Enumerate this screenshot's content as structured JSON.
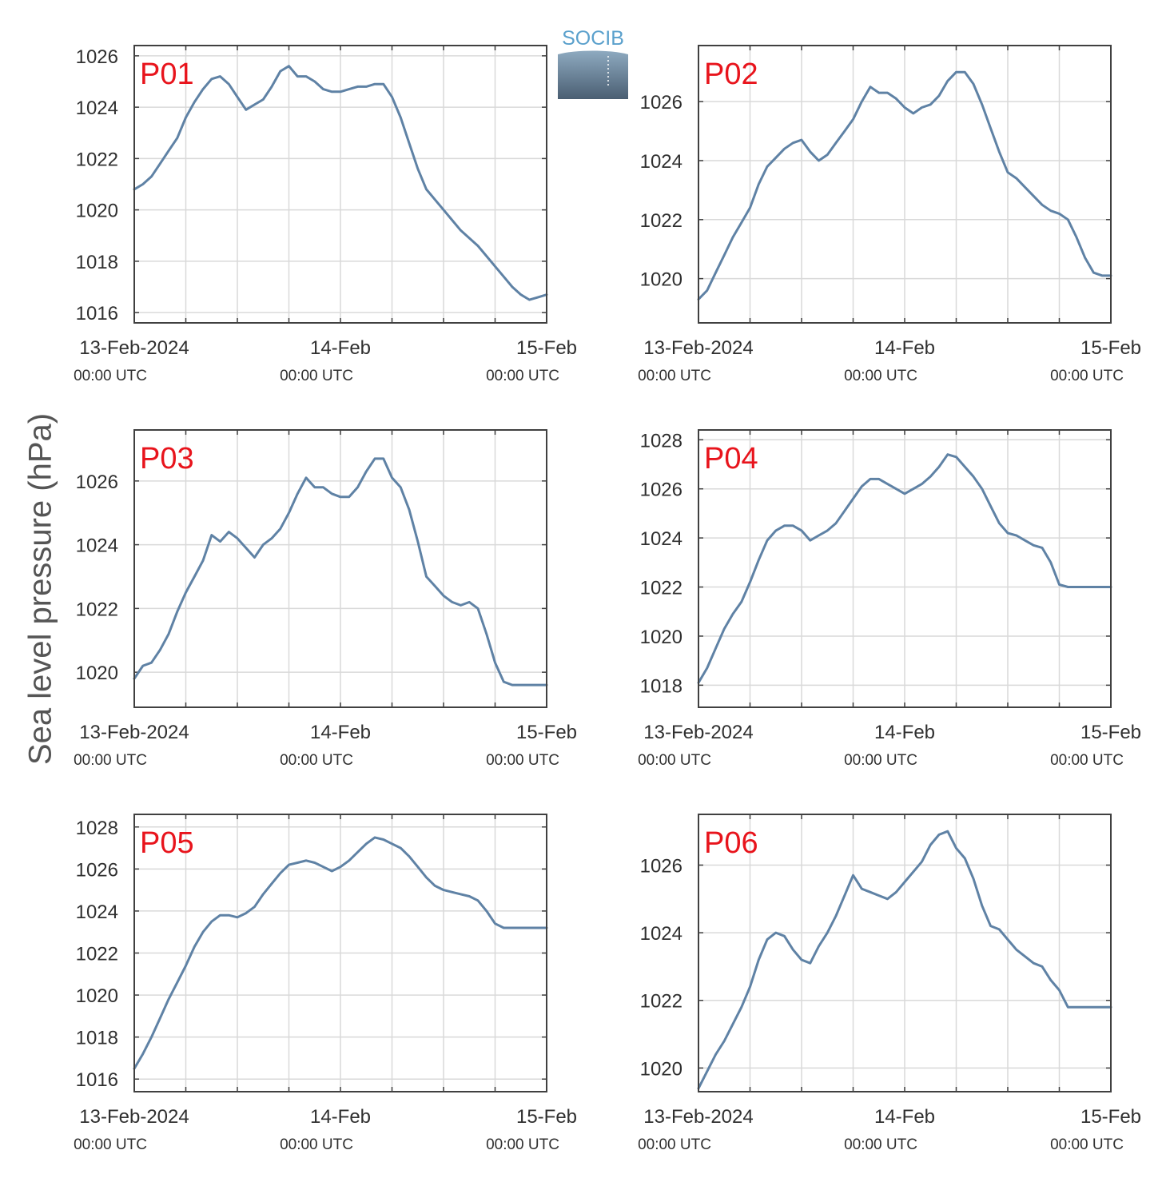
{
  "figure": {
    "ylabel": "Sea level pressure (hPa)",
    "logo_text": "SOCIB",
    "line_color": "#5f82a5",
    "label_color": "#e8141c",
    "grid_color": "#d9d9d9",
    "axis_color": "#404040"
  },
  "chart_data": [
    {
      "type": "line",
      "title": "P01",
      "grid": true,
      "xlim": [
        0,
        48
      ],
      "ylim": [
        1015.6,
        1026.4
      ],
      "xticks": [
        0,
        24,
        48
      ],
      "xtick_labels": [
        [
          "13-Feb-2024",
          "00:00 UTC"
        ],
        [
          "14-Feb",
          "00:00 UTC"
        ],
        [
          "15-Feb",
          "00:00 UTC"
        ]
      ],
      "yticks": [
        1016,
        1018,
        1020,
        1022,
        1024,
        1026
      ],
      "series": [
        {
          "x": [
            0,
            1,
            2,
            3,
            4,
            5,
            6,
            7,
            8,
            9,
            10,
            11,
            12,
            13,
            14,
            15,
            16,
            17,
            18,
            19,
            20,
            21,
            22,
            23,
            24,
            25,
            26,
            27,
            28,
            29,
            30,
            31,
            32,
            33,
            34,
            35,
            36,
            37,
            38,
            39,
            40,
            41,
            42,
            43,
            44,
            45,
            46,
            47,
            48
          ],
          "values": [
            1020.8,
            1021.0,
            1021.3,
            1021.8,
            1022.3,
            1022.8,
            1023.6,
            1024.2,
            1024.7,
            1025.1,
            1025.2,
            1024.9,
            1024.4,
            1023.9,
            1024.1,
            1024.3,
            1024.8,
            1025.4,
            1025.6,
            1025.2,
            1025.2,
            1025.0,
            1024.7,
            1024.6,
            1024.6,
            1024.7,
            1024.8,
            1024.8,
            1024.9,
            1024.9,
            1024.4,
            1023.6,
            1022.6,
            1021.6,
            1020.8,
            1020.4,
            1020.0,
            1019.6,
            1019.2,
            1018.9,
            1018.6,
            1018.2,
            1017.8,
            1017.4,
            1017.0,
            1016.7,
            1016.5,
            1016.6,
            1016.7
          ]
        }
      ]
    },
    {
      "type": "line",
      "title": "P02",
      "grid": true,
      "xlim": [
        0,
        48
      ],
      "ylim": [
        1018.5,
        1027.9
      ],
      "xticks": [
        0,
        24,
        48
      ],
      "xtick_labels": [
        [
          "13-Feb-2024",
          "00:00 UTC"
        ],
        [
          "14-Feb",
          "00:00 UTC"
        ],
        [
          "15-Feb",
          "00:00 UTC"
        ]
      ],
      "yticks": [
        1020,
        1022,
        1024,
        1026
      ],
      "series": [
        {
          "x": [
            0,
            1,
            2,
            3,
            4,
            5,
            6,
            7,
            8,
            9,
            10,
            11,
            12,
            13,
            14,
            15,
            16,
            17,
            18,
            19,
            20,
            21,
            22,
            23,
            24,
            25,
            26,
            27,
            28,
            29,
            30,
            31,
            32,
            33,
            34,
            35,
            36,
            37,
            38,
            39,
            40,
            41,
            42,
            43,
            44,
            45,
            46,
            47,
            48
          ],
          "values": [
            1019.3,
            1019.6,
            1020.2,
            1020.8,
            1021.4,
            1021.9,
            1022.4,
            1023.2,
            1023.8,
            1024.1,
            1024.4,
            1024.6,
            1024.7,
            1024.3,
            1024.0,
            1024.2,
            1024.6,
            1025.0,
            1025.4,
            1026.0,
            1026.5,
            1026.3,
            1026.3,
            1026.1,
            1025.8,
            1025.6,
            1025.8,
            1025.9,
            1026.2,
            1026.7,
            1027.0,
            1027.0,
            1026.6,
            1025.9,
            1025.1,
            1024.3,
            1023.6,
            1023.4,
            1023.1,
            1022.8,
            1022.5,
            1022.3,
            1022.2,
            1022.0,
            1021.4,
            1020.7,
            1020.2,
            1020.1,
            1020.1
          ]
        }
      ]
    },
    {
      "type": "line",
      "title": "P03",
      "grid": true,
      "xlim": [
        0,
        48
      ],
      "ylim": [
        1018.9,
        1027.6
      ],
      "xticks": [
        0,
        24,
        48
      ],
      "xtick_labels": [
        [
          "13-Feb-2024",
          "00:00 UTC"
        ],
        [
          "14-Feb",
          "00:00 UTC"
        ],
        [
          "15-Feb",
          "00:00 UTC"
        ]
      ],
      "yticks": [
        1020,
        1022,
        1024,
        1026
      ],
      "series": [
        {
          "x": [
            0,
            1,
            2,
            3,
            4,
            5,
            6,
            7,
            8,
            9,
            10,
            11,
            12,
            13,
            14,
            15,
            16,
            17,
            18,
            19,
            20,
            21,
            22,
            23,
            24,
            25,
            26,
            27,
            28,
            29,
            30,
            31,
            32,
            33,
            34,
            35,
            36,
            37,
            38,
            39,
            40,
            41,
            42,
            43,
            44,
            45,
            46,
            47,
            48
          ],
          "values": [
            1019.8,
            1020.2,
            1020.3,
            1020.7,
            1021.2,
            1021.9,
            1022.5,
            1023.0,
            1023.5,
            1024.3,
            1024.1,
            1024.4,
            1024.2,
            1023.9,
            1023.6,
            1024.0,
            1024.2,
            1024.5,
            1025.0,
            1025.6,
            1026.1,
            1025.8,
            1025.8,
            1025.6,
            1025.5,
            1025.5,
            1025.8,
            1026.3,
            1026.7,
            1026.7,
            1026.1,
            1025.8,
            1025.1,
            1024.1,
            1023.0,
            1022.7,
            1022.4,
            1022.2,
            1022.1,
            1022.2,
            1022.0,
            1021.2,
            1020.3,
            1019.7,
            1019.6,
            1019.6,
            1019.6,
            1019.6,
            1019.6
          ]
        }
      ]
    },
    {
      "type": "line",
      "title": "P04",
      "grid": true,
      "xlim": [
        0,
        48
      ],
      "ylim": [
        1017.1,
        1028.4
      ],
      "xticks": [
        0,
        24,
        48
      ],
      "xtick_labels": [
        [
          "13-Feb-2024",
          "00:00 UTC"
        ],
        [
          "14-Feb",
          "00:00 UTC"
        ],
        [
          "15-Feb",
          "00:00 UTC"
        ]
      ],
      "yticks": [
        1018,
        1020,
        1022,
        1024,
        1026,
        1028
      ],
      "series": [
        {
          "x": [
            0,
            1,
            2,
            3,
            4,
            5,
            6,
            7,
            8,
            9,
            10,
            11,
            12,
            13,
            14,
            15,
            16,
            17,
            18,
            19,
            20,
            21,
            22,
            23,
            24,
            25,
            26,
            27,
            28,
            29,
            30,
            31,
            32,
            33,
            34,
            35,
            36,
            37,
            38,
            39,
            40,
            41,
            42,
            43,
            44,
            45,
            46,
            47,
            48
          ],
          "values": [
            1018.1,
            1018.7,
            1019.5,
            1020.3,
            1020.9,
            1021.4,
            1022.2,
            1023.1,
            1023.9,
            1024.3,
            1024.5,
            1024.5,
            1024.3,
            1023.9,
            1024.1,
            1024.3,
            1024.6,
            1025.1,
            1025.6,
            1026.1,
            1026.4,
            1026.4,
            1026.2,
            1026.0,
            1025.8,
            1026.0,
            1026.2,
            1026.5,
            1026.9,
            1027.4,
            1027.3,
            1026.9,
            1026.5,
            1026.0,
            1025.3,
            1024.6,
            1024.2,
            1024.1,
            1023.9,
            1023.7,
            1023.6,
            1023.0,
            1022.1,
            1022.0,
            1022.0,
            1022.0,
            1022.0,
            1022.0,
            1022.0
          ]
        }
      ]
    },
    {
      "type": "line",
      "title": "P05",
      "grid": true,
      "xlim": [
        0,
        48
      ],
      "ylim": [
        1015.4,
        1028.6
      ],
      "xticks": [
        0,
        24,
        48
      ],
      "xtick_labels": [
        [
          "13-Feb-2024",
          "00:00 UTC"
        ],
        [
          "14-Feb",
          "00:00 UTC"
        ],
        [
          "15-Feb",
          "00:00 UTC"
        ]
      ],
      "yticks": [
        1016,
        1018,
        1020,
        1022,
        1024,
        1026,
        1028
      ],
      "series": [
        {
          "x": [
            0,
            1,
            2,
            3,
            4,
            5,
            6,
            7,
            8,
            9,
            10,
            11,
            12,
            13,
            14,
            15,
            16,
            17,
            18,
            19,
            20,
            21,
            22,
            23,
            24,
            25,
            26,
            27,
            28,
            29,
            30,
            31,
            32,
            33,
            34,
            35,
            36,
            37,
            38,
            39,
            40,
            41,
            42,
            43,
            44,
            45,
            46,
            47,
            48
          ],
          "values": [
            1016.5,
            1017.2,
            1018.0,
            1018.9,
            1019.8,
            1020.6,
            1021.4,
            1022.3,
            1023.0,
            1023.5,
            1023.8,
            1023.8,
            1023.7,
            1023.9,
            1024.2,
            1024.8,
            1025.3,
            1025.8,
            1026.2,
            1026.3,
            1026.4,
            1026.3,
            1026.1,
            1025.9,
            1026.1,
            1026.4,
            1026.8,
            1027.2,
            1027.5,
            1027.4,
            1027.2,
            1027.0,
            1026.6,
            1026.1,
            1025.6,
            1025.2,
            1025.0,
            1024.9,
            1024.8,
            1024.7,
            1024.5,
            1024.0,
            1023.4,
            1023.2,
            1023.2,
            1023.2,
            1023.2,
            1023.2,
            1023.2
          ]
        }
      ]
    },
    {
      "type": "line",
      "title": "P06",
      "grid": true,
      "xlim": [
        0,
        48
      ],
      "ylim": [
        1019.3,
        1027.5
      ],
      "xticks": [
        0,
        24,
        48
      ],
      "xtick_labels": [
        [
          "13-Feb-2024",
          "00:00 UTC"
        ],
        [
          "14-Feb",
          "00:00 UTC"
        ],
        [
          "15-Feb",
          "00:00 UTC"
        ]
      ],
      "yticks": [
        1020,
        1022,
        1024,
        1026
      ],
      "series": [
        {
          "x": [
            0,
            1,
            2,
            3,
            4,
            5,
            6,
            7,
            8,
            9,
            10,
            11,
            12,
            13,
            14,
            15,
            16,
            17,
            18,
            19,
            20,
            21,
            22,
            23,
            24,
            25,
            26,
            27,
            28,
            29,
            30,
            31,
            32,
            33,
            34,
            35,
            36,
            37,
            38,
            39,
            40,
            41,
            42,
            43,
            44,
            45,
            46,
            47,
            48
          ],
          "values": [
            1019.4,
            1019.9,
            1020.4,
            1020.8,
            1021.3,
            1021.8,
            1022.4,
            1023.2,
            1023.8,
            1024.0,
            1023.9,
            1023.5,
            1023.2,
            1023.1,
            1023.6,
            1024.0,
            1024.5,
            1025.1,
            1025.7,
            1025.3,
            1025.2,
            1025.1,
            1025.0,
            1025.2,
            1025.5,
            1025.8,
            1026.1,
            1026.6,
            1026.9,
            1027.0,
            1026.5,
            1026.2,
            1025.6,
            1024.8,
            1024.2,
            1024.1,
            1023.8,
            1023.5,
            1023.3,
            1023.1,
            1023.0,
            1022.6,
            1022.3,
            1021.8,
            1021.8,
            1021.8,
            1021.8,
            1021.8,
            1021.8
          ]
        }
      ]
    }
  ]
}
